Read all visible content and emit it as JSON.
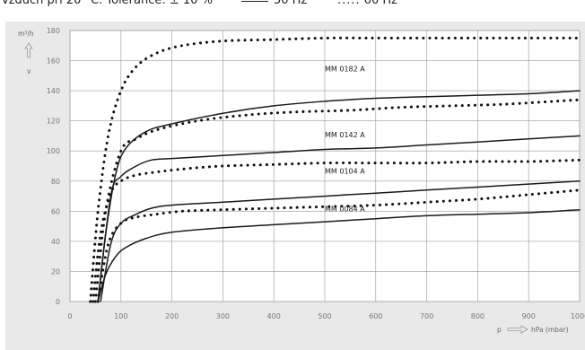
{
  "header": {
    "condition": "vzduch při 20 °C. Tolerance: ± 10 %",
    "legend_50": "50 Hz",
    "legend_60": "60 Hz",
    "dots_symbol": "....."
  },
  "colors": {
    "panel": "#e9e9e9",
    "plot": "#ffffff",
    "grid": "#9a9a9a",
    "line_50hz": "#1a1a1a",
    "line_60hz": "#111111"
  },
  "chart_data": {
    "type": "line",
    "xlabel": "hPa (mbar)",
    "xlabel_prefix": "p",
    "ylabel": "m³/h",
    "ylabel_arrow": "v",
    "xlim": [
      0,
      1000
    ],
    "ylim": [
      0,
      180
    ],
    "xticks": [
      0,
      100,
      200,
      300,
      400,
      500,
      600,
      700,
      800,
      900,
      1000
    ],
    "yticks": [
      0,
      20,
      40,
      60,
      80,
      100,
      120,
      140,
      160,
      180
    ],
    "grid": true,
    "series": [
      {
        "model": "MM 0182 A",
        "name": "MM 0182 A",
        "freq": "50 Hz",
        "style": "solid",
        "x": [
          55,
          70,
          90,
          110,
          150,
          200,
          300,
          400,
          500,
          600,
          700,
          800,
          900,
          1000
        ],
        "y": [
          0,
          45,
          85,
          102,
          113,
          118,
          125,
          130,
          133,
          135,
          136,
          137,
          138,
          140
        ]
      },
      {
        "model": "MM 0182 A",
        "freq": "60 Hz",
        "style": "dotted",
        "x": [
          40,
          55,
          75,
          100,
          130,
          170,
          220,
          300,
          400,
          500,
          600,
          700,
          800,
          900,
          1000
        ],
        "y": [
          0,
          60,
          110,
          140,
          156,
          165,
          170,
          173,
          174,
          175,
          175,
          175,
          175,
          175,
          175
        ]
      },
      {
        "model": "MM 0182 A",
        "freq": "60 Hz",
        "style": "dotted",
        "x": [
          50,
          70,
          100,
          130,
          170,
          250,
          350,
          450,
          550,
          650,
          750,
          850,
          950,
          1000
        ],
        "y": [
          0,
          60,
          100,
          108,
          114,
          120,
          124,
          126,
          127,
          129,
          130,
          131,
          133,
          134
        ]
      },
      {
        "model": "MM 0142 A",
        "name": "MM 0142 A",
        "freq": "50 Hz",
        "style": "solid",
        "x": [
          55,
          80,
          100,
          130,
          160,
          200,
          300,
          400,
          500,
          600,
          700,
          800,
          900,
          1000
        ],
        "y": [
          0,
          70,
          83,
          90,
          94,
          95,
          97,
          99,
          101,
          102,
          104,
          106,
          108,
          110
        ]
      },
      {
        "model": "MM 0104 A",
        "name": "MM 0104 A",
        "freq": "60 Hz",
        "style": "dotted",
        "x": [
          45,
          60,
          80,
          100,
          130,
          170,
          220,
          300,
          400,
          500,
          600,
          700,
          800,
          900,
          1000
        ],
        "y": [
          0,
          45,
          72,
          80,
          84,
          86,
          88,
          90,
          91,
          92,
          92,
          92,
          93,
          93,
          94
        ]
      },
      {
        "model": "MM 0104 A",
        "freq": "50 Hz",
        "style": "solid",
        "x": [
          60,
          80,
          100,
          130,
          160,
          200,
          300,
          400,
          500,
          600,
          700,
          800,
          900,
          1000
        ],
        "y": [
          0,
          38,
          52,
          58,
          62,
          64,
          66,
          68,
          70,
          72,
          74,
          76,
          78,
          80
        ]
      },
      {
        "model": "MM 0084 A",
        "freq": "60 Hz",
        "style": "dotted",
        "x": [
          55,
          75,
          100,
          130,
          170,
          220,
          300,
          400,
          500,
          600,
          700,
          800,
          900,
          1000
        ],
        "y": [
          0,
          38,
          52,
          56,
          58,
          60,
          61,
          62,
          63,
          64,
          66,
          68,
          71,
          74
        ]
      },
      {
        "model": "MM 0084 A",
        "name": "MM 0084 A",
        "freq": "50 Hz",
        "style": "solid",
        "x": [
          55,
          70,
          90,
          110,
          150,
          200,
          300,
          400,
          500,
          600,
          700,
          800,
          900,
          1000
        ],
        "y": [
          0,
          18,
          30,
          36,
          42,
          46,
          49,
          51,
          53,
          55,
          57,
          58,
          59,
          61
        ]
      }
    ],
    "labels": [
      {
        "text": "MM 0182 A",
        "x": 500,
        "y": 153
      },
      {
        "text": "MM 0142 A",
        "x": 500,
        "y": 109
      },
      {
        "text": "MM 0104 A",
        "x": 500,
        "y": 85
      },
      {
        "text": "MM 0084 A",
        "x": 500,
        "y": 60
      }
    ]
  }
}
